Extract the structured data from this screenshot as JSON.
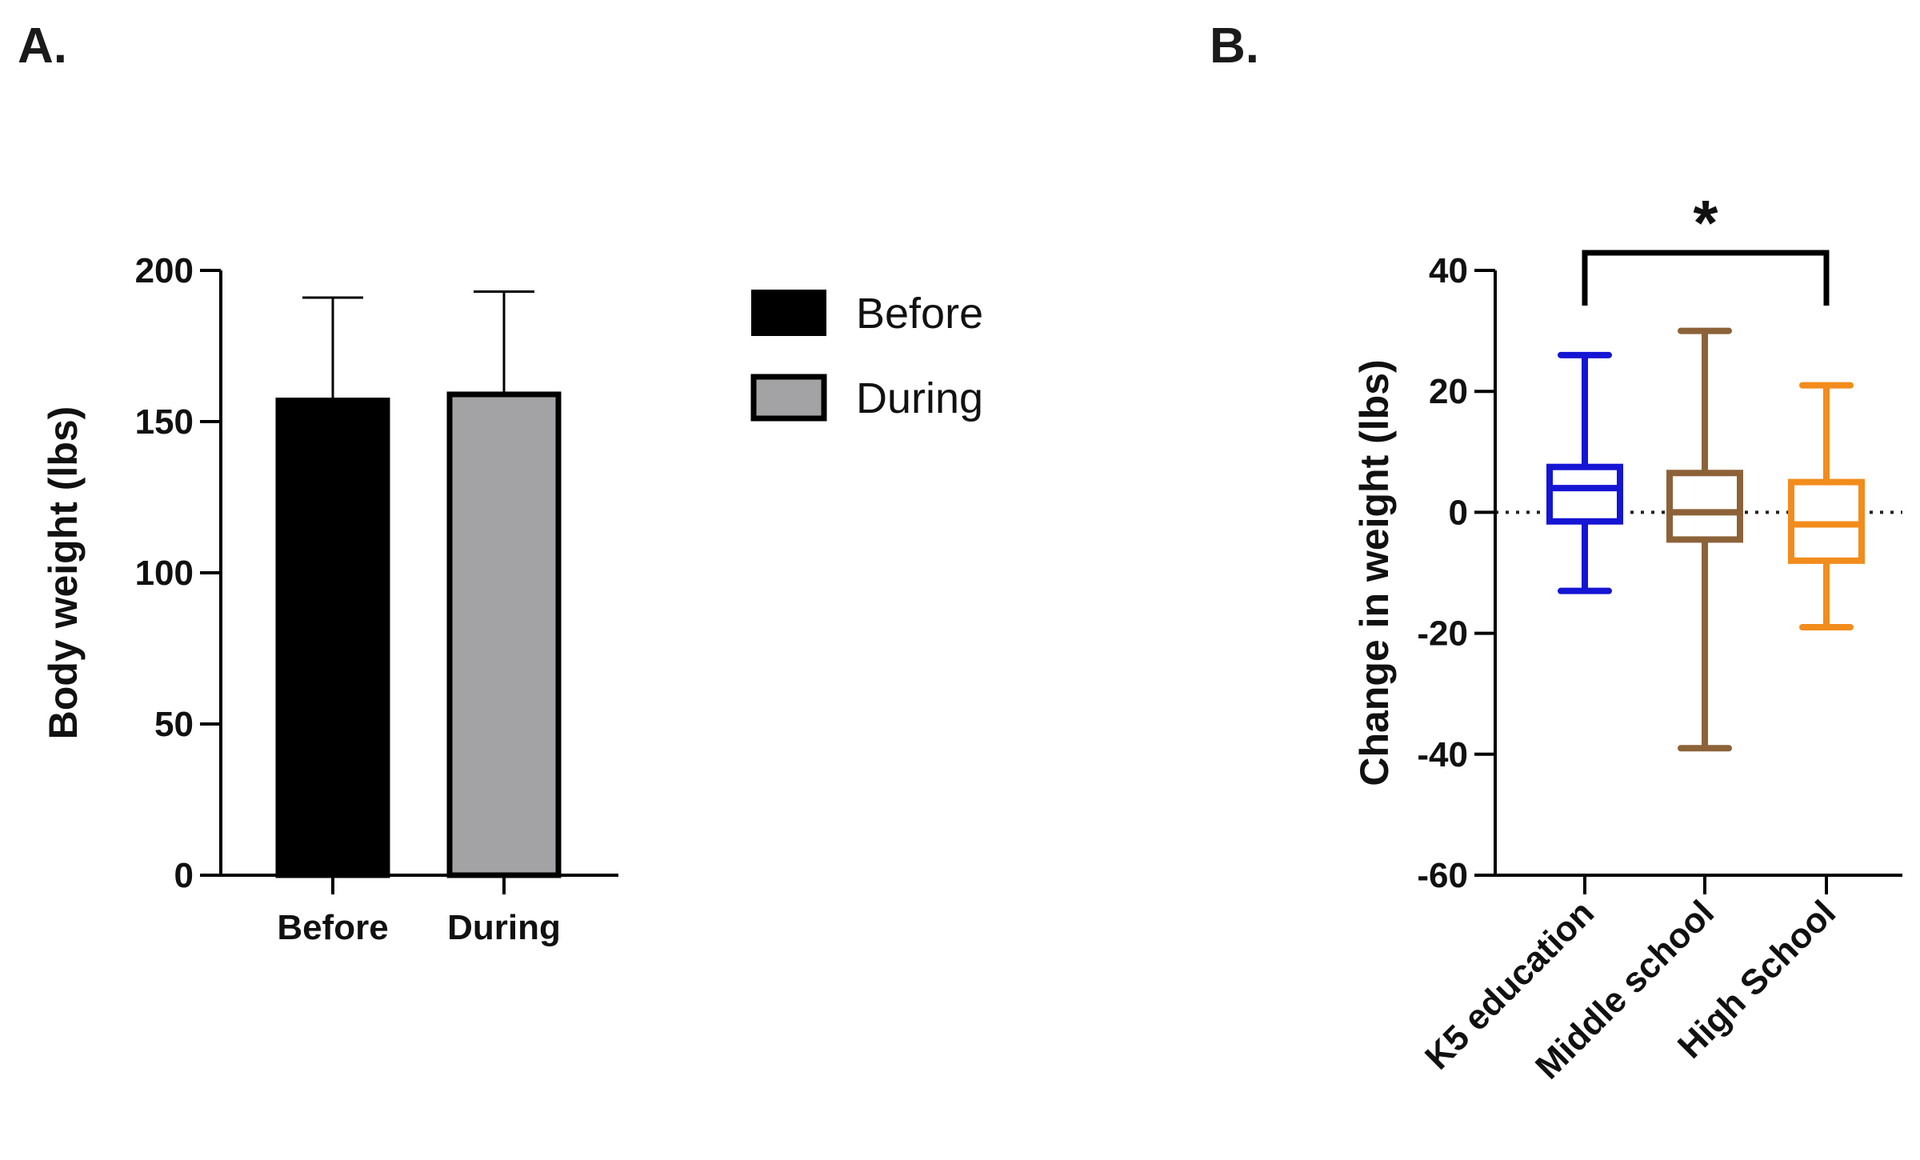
{
  "panels": {
    "a_label": "A.",
    "b_label": "B."
  },
  "chart_data": [
    {
      "type": "bar",
      "panel": "A.",
      "title": "",
      "xlabel": "",
      "ylabel": "Body weight (lbs)",
      "ylim": [
        0,
        200
      ],
      "yticks": [
        "0",
        "50",
        "100",
        "150",
        "200"
      ],
      "categories": [
        "Before",
        "During"
      ],
      "values": [
        157,
        159
      ],
      "error_upper": [
        191,
        193
      ],
      "colors": [
        "#000000",
        "#a3a3a6"
      ],
      "legend": {
        "placement": "right",
        "entries": [
          {
            "label": "Before",
            "color": "#000000"
          },
          {
            "label": "During",
            "color": "#a3a3a6"
          }
        ]
      }
    },
    {
      "type": "box",
      "panel": "B.",
      "title": "",
      "xlabel": "",
      "ylabel": "Change in weight (lbs)",
      "ylim": [
        -60,
        40
      ],
      "yticks": [
        "-60",
        "-40",
        "-20",
        "0",
        "20",
        "40"
      ],
      "categories": [
        "K5 education",
        "Middle school",
        "High School"
      ],
      "boxes": [
        {
          "name": "K5 education",
          "min": -13,
          "q1": -1.5,
          "median": 4,
          "q3": 7.5,
          "max": 26,
          "color": "#1515d4"
        },
        {
          "name": "Middle school",
          "min": -39,
          "q1": -4.5,
          "median": 0,
          "q3": 6.5,
          "max": 30,
          "color": "#8c6239"
        },
        {
          "name": "High School",
          "min": -19,
          "q1": -8,
          "median": -2,
          "q3": 5,
          "max": 21,
          "color": "#f28c1c"
        }
      ],
      "reference_line": 0,
      "significance": {
        "from": "K5 education",
        "to": "High School",
        "label": "*"
      }
    }
  ]
}
